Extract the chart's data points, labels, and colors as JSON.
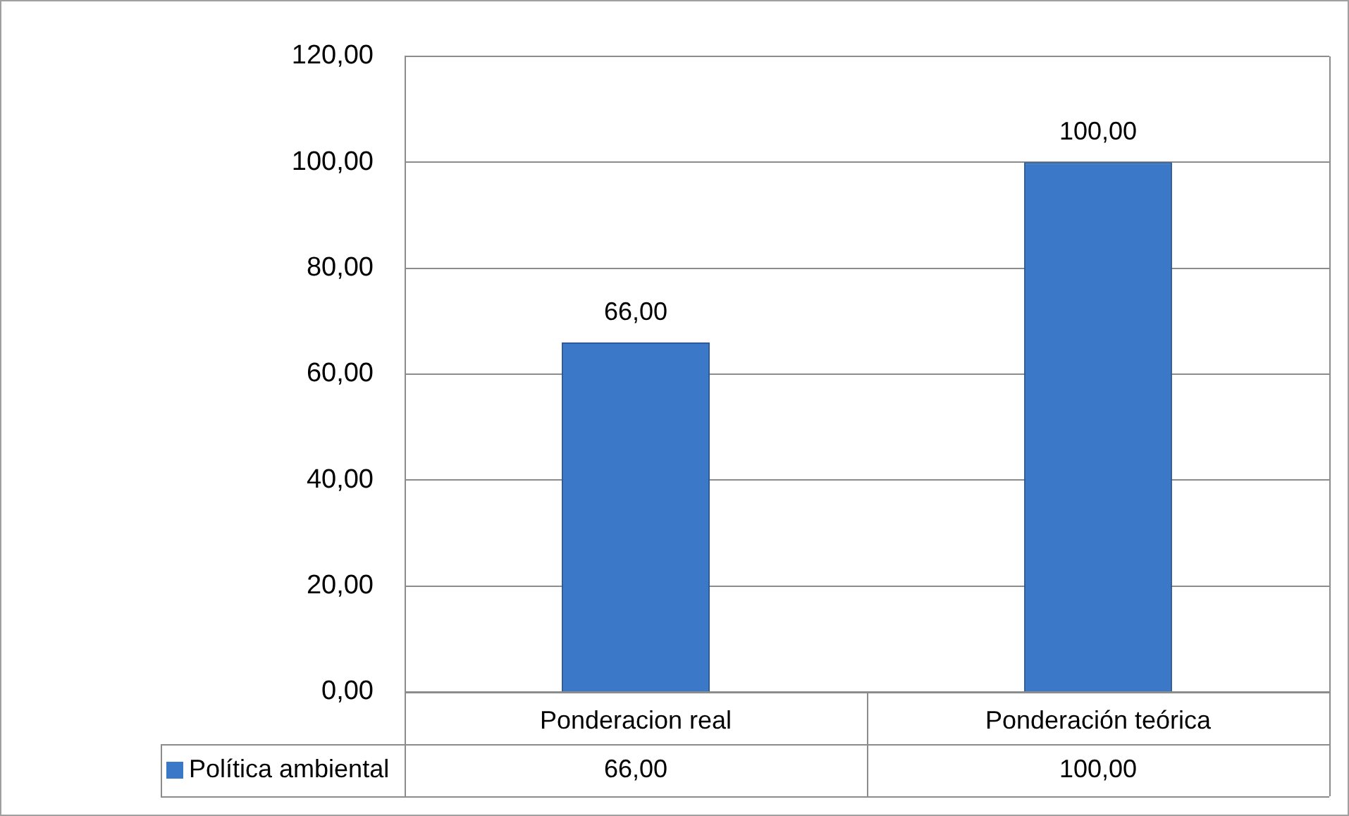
{
  "chart_data": {
    "type": "bar",
    "categories": [
      "Ponderacion real",
      "Ponderación teórica"
    ],
    "series": [
      {
        "name": "Política ambiental",
        "color": "#3b78c8",
        "values": [
          66,
          100
        ],
        "value_labels": [
          "66,00",
          "100,00"
        ]
      }
    ],
    "ylim": [
      0,
      120
    ],
    "yticks": [
      {
        "value": 0,
        "label": "0,00"
      },
      {
        "value": 20,
        "label": "20,00"
      },
      {
        "value": 40,
        "label": "40,00"
      },
      {
        "value": 60,
        "label": "60,00"
      },
      {
        "value": 80,
        "label": "80,00"
      },
      {
        "value": 100,
        "label": "100,00"
      },
      {
        "value": 120,
        "label": "120,00"
      }
    ],
    "grid": "y",
    "legend": "bottom"
  }
}
